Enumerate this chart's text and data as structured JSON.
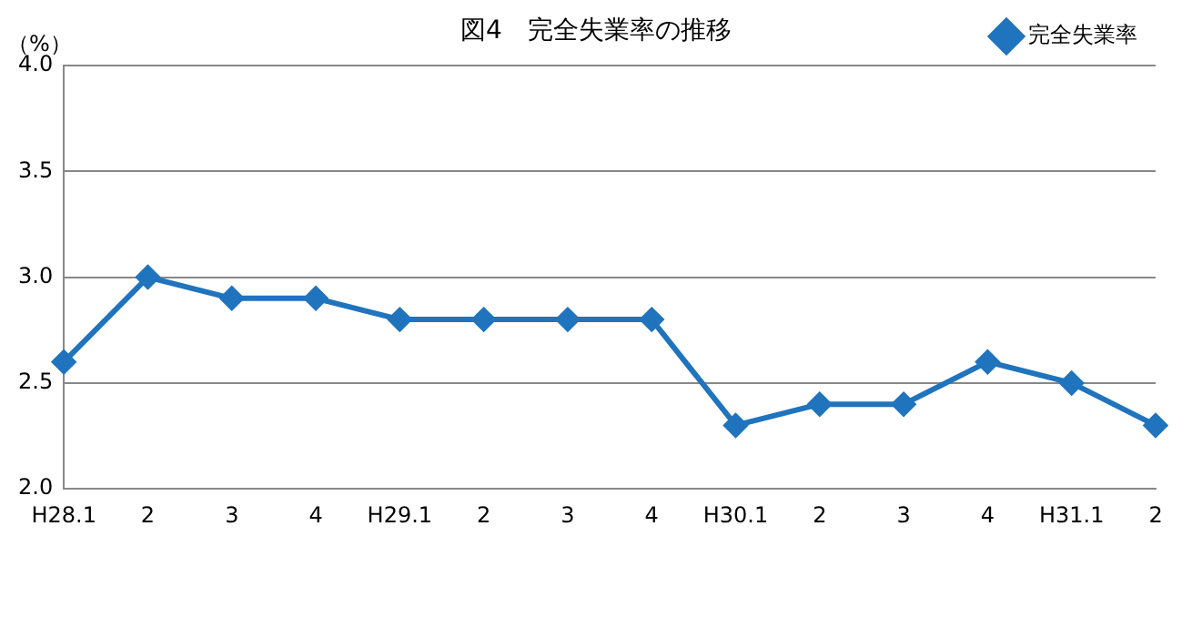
{
  "chart_data": {
    "type": "line",
    "title": "図4　完全失業率の推移",
    "ylabel": "（%）",
    "categories": [
      "H28.1",
      "2",
      "3",
      "4",
      "H29.1",
      "2",
      "3",
      "4",
      "H30.1",
      "2",
      "3",
      "4",
      "H31.1",
      "2"
    ],
    "series": [
      {
        "name": "完全失業率",
        "color": "#1f74bd",
        "values": [
          2.6,
          3.0,
          2.9,
          2.9,
          2.8,
          2.8,
          2.8,
          2.8,
          2.3,
          2.4,
          2.4,
          2.6,
          2.5,
          2.3
        ]
      }
    ],
    "ylim": [
      2.0,
      4.0
    ],
    "yticks": [
      {
        "value": 2.0,
        "label": "2.0"
      },
      {
        "value": 2.5,
        "label": "2.5"
      },
      {
        "value": 3.0,
        "label": "3.0"
      },
      {
        "value": 3.5,
        "label": "3.5"
      },
      {
        "value": 4.0,
        "label": "4.0"
      }
    ],
    "grid": "y",
    "legend": "top right",
    "marker": "diamond",
    "line_style": "solid"
  }
}
